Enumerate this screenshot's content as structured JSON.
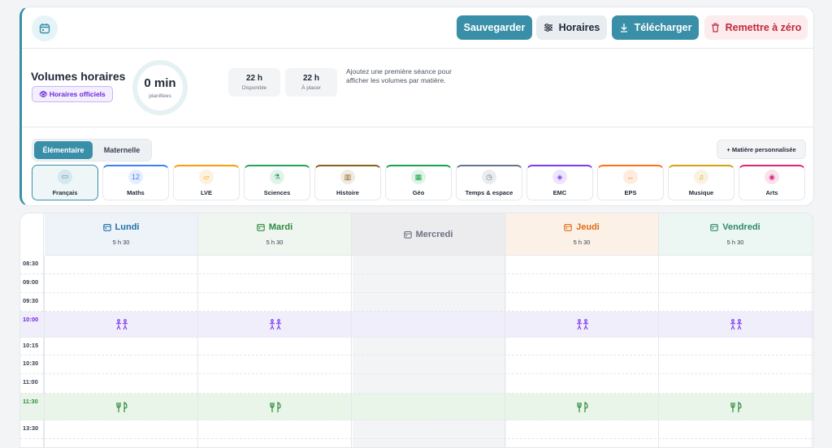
{
  "toolbar": {
    "save_label": "Sauvegarder",
    "hours_label": "Horaires",
    "download_label": "Télécharger",
    "reset_label": "Remettre à zéro"
  },
  "volumes": {
    "title": "Volumes horaires",
    "official_badge": "Horaires officiels",
    "planned_value": "0 min",
    "planned_label": "planifiées",
    "available_value": "22 h",
    "available_label": "Disponible",
    "toplace_value": "22 h",
    "toplace_label": "À placer",
    "hint": "Ajoutez une première séance pour afficher les volumes par matière."
  },
  "levels": {
    "elementary": "Élémentaire",
    "kindergarten": "Maternelle",
    "custom_button": "+ Matière personnalisée"
  },
  "subjects": [
    {
      "label": "Français",
      "color": "#3a8fa8",
      "icon": "book-icon"
    },
    {
      "label": "Maths",
      "color": "#3b82f6",
      "icon": "numbers-icon"
    },
    {
      "label": "LVE",
      "color": "#f59e0b",
      "icon": "speech-icon"
    },
    {
      "label": "Sciences",
      "color": "#22a35a",
      "icon": "flask-icon"
    },
    {
      "label": "Histoire",
      "color": "#8b5e1a",
      "icon": "museum-icon"
    },
    {
      "label": "Géo",
      "color": "#16a34a",
      "icon": "map-icon"
    },
    {
      "label": "Temps & espace",
      "color": "#64748b",
      "icon": "clock-icon"
    },
    {
      "label": "EMC",
      "color": "#7c3aed",
      "icon": "shield-icon"
    },
    {
      "label": "EPS",
      "color": "#f97316",
      "icon": "dumbbell-icon"
    },
    {
      "label": "Musique",
      "color": "#d4a017",
      "icon": "music-icon"
    },
    {
      "label": "Arts",
      "color": "#db2777",
      "icon": "palette-icon"
    }
  ],
  "days": [
    {
      "name": "Lundi",
      "hours": "5 h 30",
      "color": "#1e6fa8"
    },
    {
      "name": "Mardi",
      "hours": "5 h 30",
      "color": "#2f8a3e"
    },
    {
      "name": "Mercredi",
      "hours": "",
      "color": "#6b7280"
    },
    {
      "name": "Jeudi",
      "hours": "5 h 30",
      "color": "#e06a14"
    },
    {
      "name": "Vendredi",
      "hours": "5 h 30",
      "color": "#2f8a6a"
    }
  ],
  "times": [
    "08:30",
    "09:00",
    "09:30",
    "10:00",
    "10:15",
    "10:30",
    "11:00",
    "11:30",
    "13:30"
  ],
  "colors": {
    "accent": "#3a8fa8",
    "recess": "#f1eefc",
    "lunch": "#eaf5ea"
  }
}
